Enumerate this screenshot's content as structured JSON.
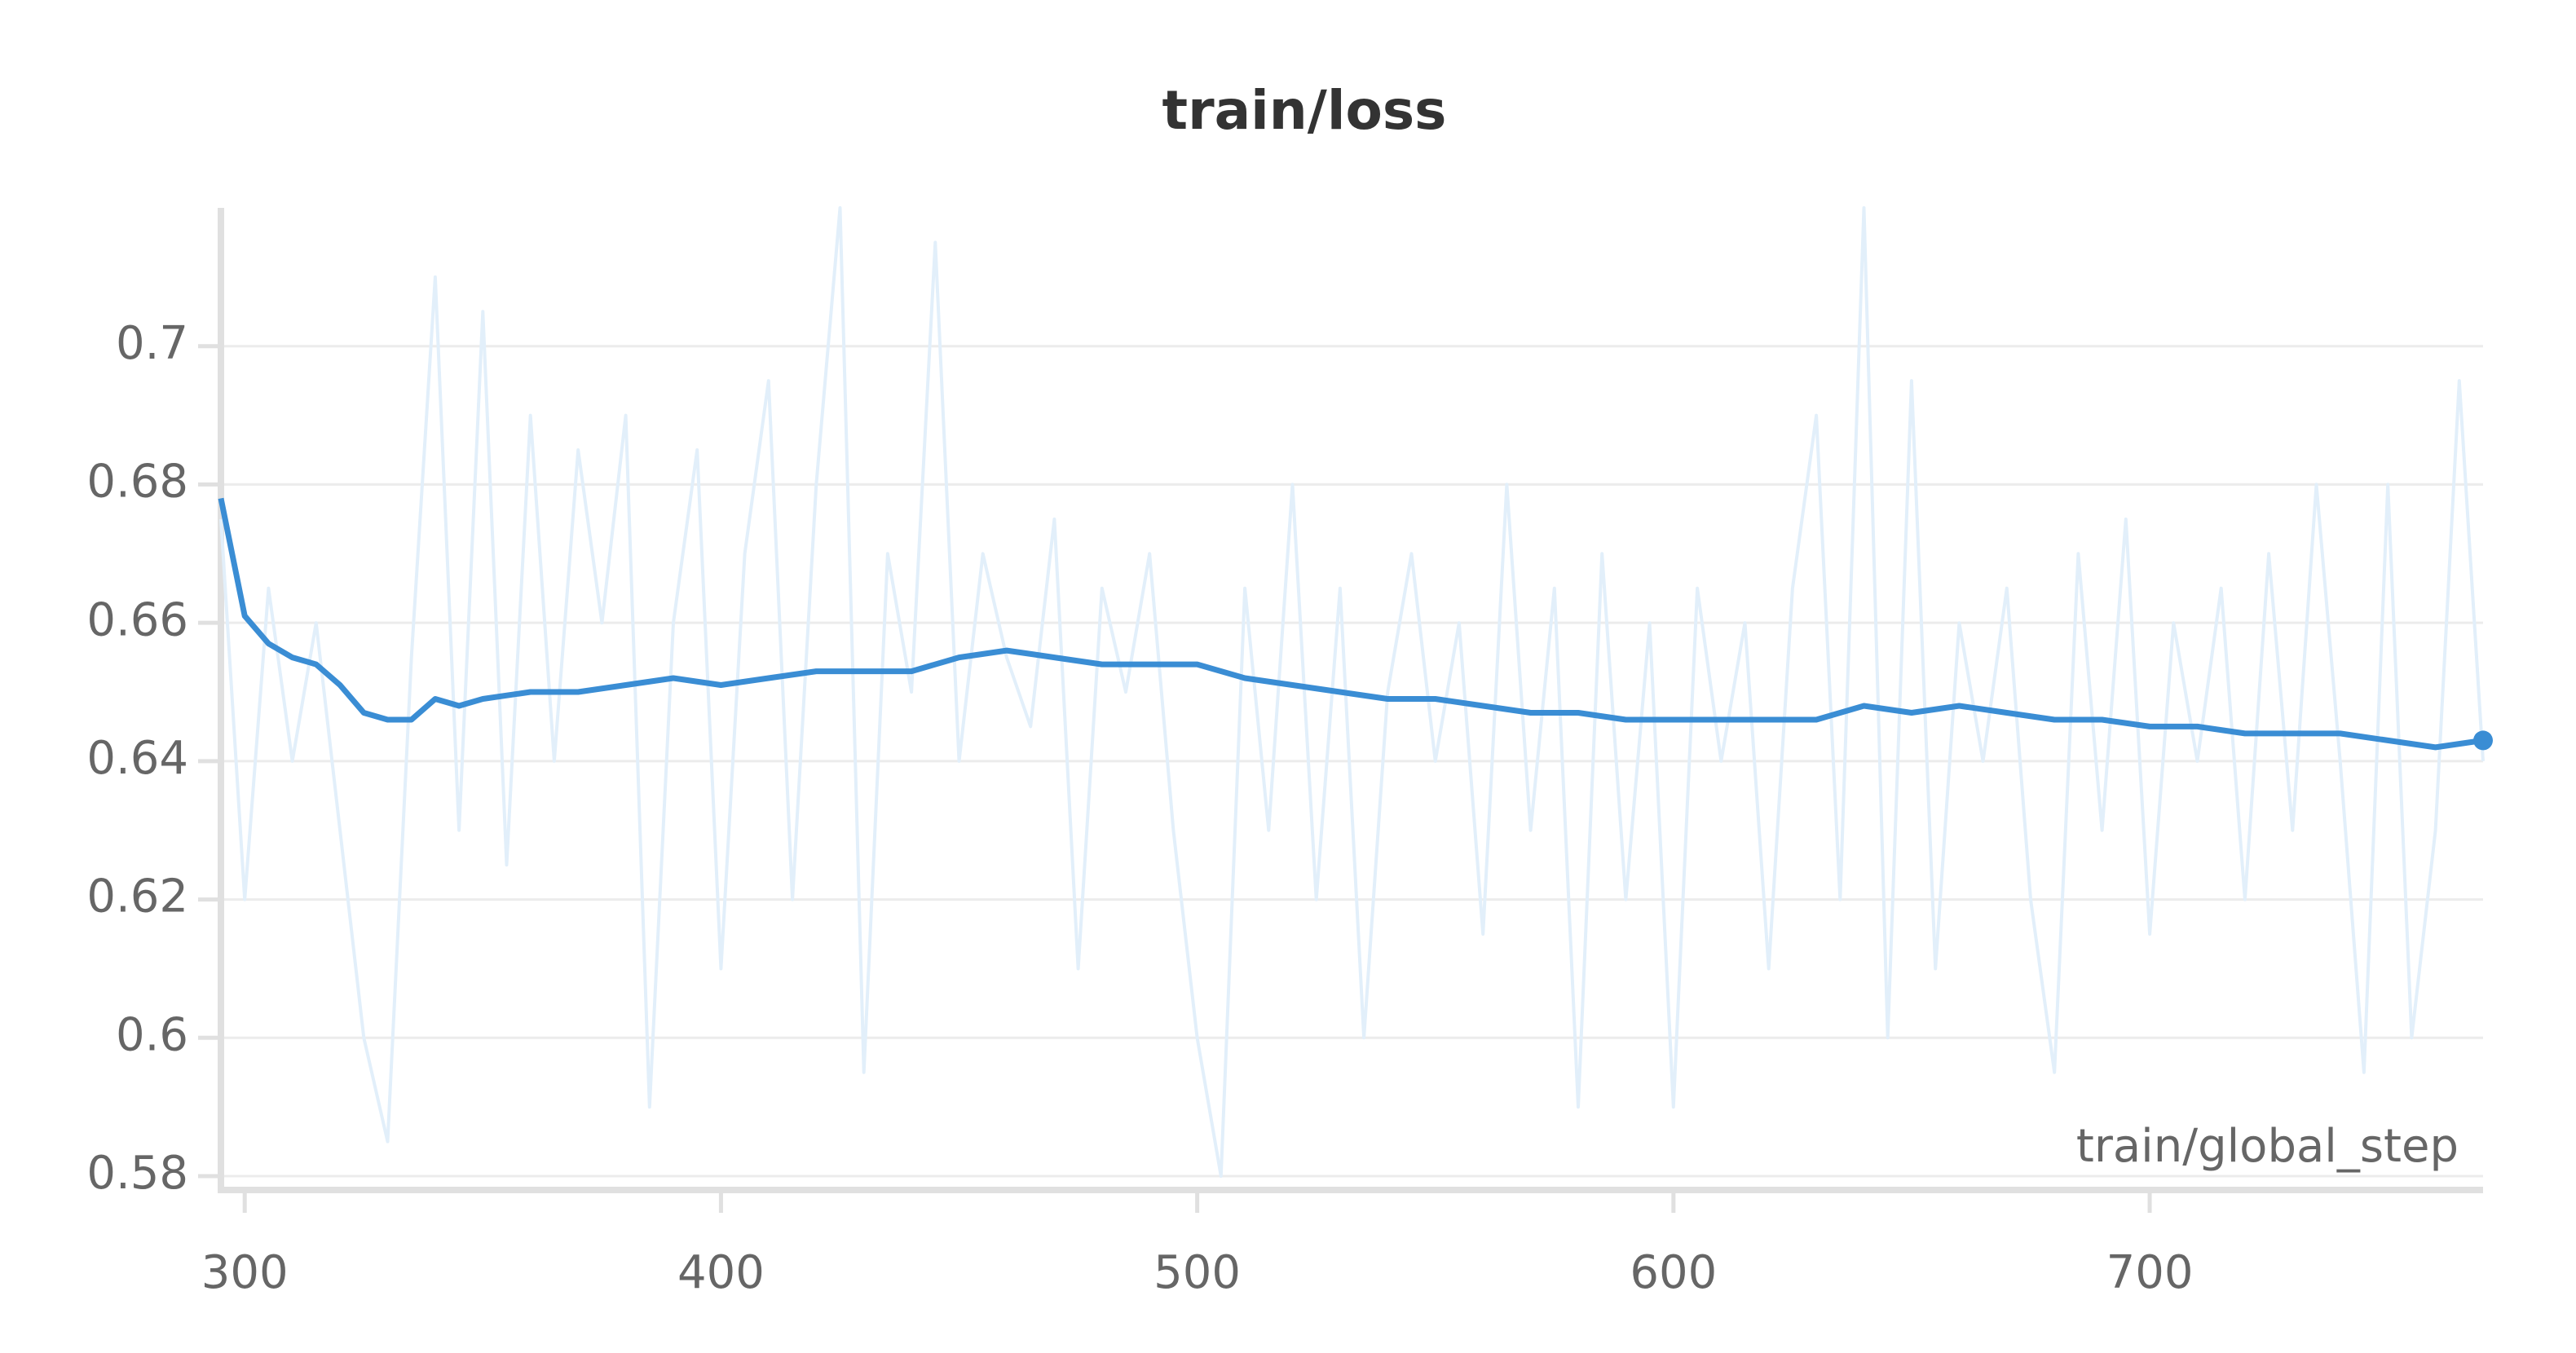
{
  "chart_data": {
    "type": "line",
    "title": "train/loss",
    "x_label": "train/global_step",
    "xlim": [
      295,
      770
    ],
    "xticks": [
      300,
      400,
      500,
      600,
      700
    ],
    "ylim": [
      0.578,
      0.72
    ],
    "yticks": [
      0.58,
      0.6,
      0.62,
      0.64,
      0.66,
      0.68,
      0.7
    ],
    "grid": true,
    "series": [
      {
        "color": "#e2effa",
        "x": [
          295,
          300,
          305,
          310,
          315,
          320,
          325,
          330,
          335,
          340,
          345,
          350,
          355,
          360,
          365,
          370,
          375,
          380,
          385,
          390,
          395,
          400,
          405,
          410,
          415,
          420,
          425,
          430,
          435,
          440,
          445,
          450,
          455,
          460,
          465,
          470,
          475,
          480,
          485,
          490,
          495,
          500,
          505,
          510,
          515,
          520,
          525,
          530,
          535,
          540,
          545,
          550,
          555,
          560,
          565,
          570,
          575,
          580,
          585,
          590,
          595,
          600,
          605,
          610,
          615,
          620,
          625,
          630,
          635,
          640,
          645,
          650,
          655,
          660,
          665,
          670,
          675,
          680,
          685,
          690,
          695,
          700,
          705,
          710,
          715,
          720,
          725,
          730,
          735,
          740,
          745,
          750,
          755,
          760,
          765,
          770
        ],
        "values": [
          0.675,
          0.62,
          0.665,
          0.64,
          0.66,
          0.63,
          0.6,
          0.585,
          0.655,
          0.71,
          0.63,
          0.705,
          0.625,
          0.69,
          0.64,
          0.685,
          0.66,
          0.69,
          0.59,
          0.66,
          0.685,
          0.61,
          0.67,
          0.695,
          0.62,
          0.68,
          0.72,
          0.595,
          0.67,
          0.65,
          0.715,
          0.64,
          0.67,
          0.655,
          0.645,
          0.675,
          0.61,
          0.665,
          0.65,
          0.67,
          0.63,
          0.6,
          0.58,
          0.665,
          0.63,
          0.68,
          0.62,
          0.665,
          0.6,
          0.65,
          0.67,
          0.64,
          0.66,
          0.615,
          0.68,
          0.63,
          0.665,
          0.59,
          0.67,
          0.62,
          0.66,
          0.59,
          0.665,
          0.64,
          0.66,
          0.61,
          0.665,
          0.69,
          0.62,
          0.72,
          0.6,
          0.695,
          0.61,
          0.66,
          0.64,
          0.665,
          0.62,
          0.595,
          0.67,
          0.63,
          0.675,
          0.615,
          0.66,
          0.64,
          0.665,
          0.62,
          0.67,
          0.63,
          0.68,
          0.64,
          0.595,
          0.68,
          0.6,
          0.63,
          0.695,
          0.64
        ]
      },
      {
        "color": "#3a8dd4",
        "x": [
          295,
          300,
          305,
          310,
          315,
          320,
          325,
          330,
          335,
          340,
          345,
          350,
          360,
          370,
          380,
          390,
          400,
          410,
          420,
          430,
          440,
          450,
          460,
          470,
          480,
          490,
          500,
          510,
          520,
          530,
          540,
          550,
          560,
          570,
          580,
          590,
          600,
          610,
          620,
          630,
          640,
          650,
          660,
          670,
          680,
          690,
          700,
          710,
          720,
          730,
          740,
          750,
          760,
          770
        ],
        "values": [
          0.678,
          0.661,
          0.657,
          0.655,
          0.654,
          0.651,
          0.647,
          0.646,
          0.646,
          0.649,
          0.648,
          0.649,
          0.65,
          0.65,
          0.651,
          0.652,
          0.651,
          0.652,
          0.653,
          0.653,
          0.653,
          0.655,
          0.656,
          0.655,
          0.654,
          0.654,
          0.654,
          0.652,
          0.651,
          0.65,
          0.649,
          0.649,
          0.648,
          0.647,
          0.647,
          0.646,
          0.646,
          0.646,
          0.646,
          0.646,
          0.648,
          0.647,
          0.648,
          0.647,
          0.646,
          0.646,
          0.645,
          0.645,
          0.644,
          0.644,
          0.644,
          0.643,
          0.642,
          0.643
        ]
      }
    ]
  }
}
